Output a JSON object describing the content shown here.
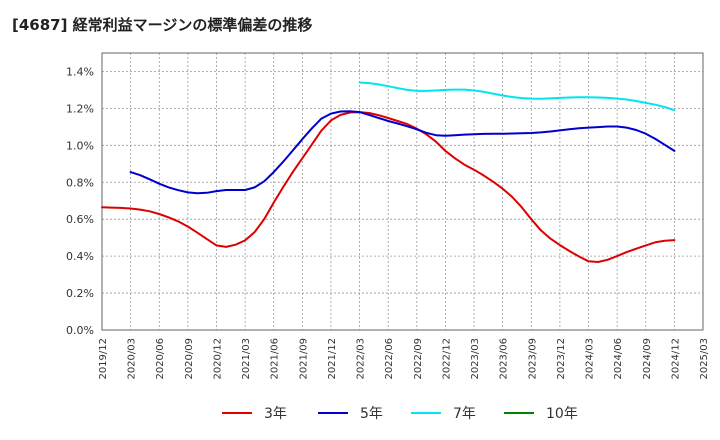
{
  "chart_data": {
    "type": "line",
    "title": "[4687]  経常利益マージンの標準偏差の推移",
    "xlabel": "",
    "ylabel": "",
    "ylim": [
      0,
      0.015
    ],
    "y_ticks": [
      "0.0%",
      "0.2%",
      "0.4%",
      "0.6%",
      "0.8%",
      "1.0%",
      "1.2%",
      "1.4%"
    ],
    "x_ticks": [
      "2019/12",
      "2020/03",
      "2020/06",
      "2020/09",
      "2020/12",
      "2021/03",
      "2021/06",
      "2021/09",
      "2021/12",
      "2022/03",
      "2022/06",
      "2022/09",
      "2022/12",
      "2023/03",
      "2023/06",
      "2023/09",
      "2023/12",
      "2024/03",
      "2024/06",
      "2024/09",
      "2024/12",
      "2025/03"
    ],
    "grid": true,
    "legend_position": "bottom",
    "series": [
      {
        "name": "3年",
        "color": "#dd0000",
        "points": [
          [
            "2019/12",
            0.00665
          ],
          [
            "2020/01",
            0.00663
          ],
          [
            "2020/02",
            0.00661
          ],
          [
            "2020/03",
            0.00658
          ],
          [
            "2020/04",
            0.00652
          ],
          [
            "2020/05",
            0.00643
          ],
          [
            "2020/06",
            0.00628
          ],
          [
            "2020/07",
            0.0061
          ],
          [
            "2020/08",
            0.00588
          ],
          [
            "2020/09",
            0.0056
          ],
          [
            "2020/10",
            0.00527
          ],
          [
            "2020/11",
            0.00492
          ],
          [
            "2020/12",
            0.00458
          ],
          [
            "2021/01",
            0.0045
          ],
          [
            "2021/02",
            0.00462
          ],
          [
            "2021/03",
            0.00485
          ],
          [
            "2021/04",
            0.0053
          ],
          [
            "2021/05",
            0.006
          ],
          [
            "2021/06",
            0.0069
          ],
          [
            "2021/07",
            0.00775
          ],
          [
            "2021/08",
            0.00855
          ],
          [
            "2021/09",
            0.0093
          ],
          [
            "2021/10",
            0.01005
          ],
          [
            "2021/11",
            0.0108
          ],
          [
            "2021/12",
            0.01135
          ],
          [
            "2022/01",
            0.01165
          ],
          [
            "2022/02",
            0.01178
          ],
          [
            "2022/03",
            0.0118
          ],
          [
            "2022/04",
            0.01175
          ],
          [
            "2022/05",
            0.01163
          ],
          [
            "2022/06",
            0.01148
          ],
          [
            "2022/07",
            0.01132
          ],
          [
            "2022/08",
            0.01115
          ],
          [
            "2022/09",
            0.0109
          ],
          [
            "2022/10",
            0.0106
          ],
          [
            "2022/11",
            0.0102
          ],
          [
            "2022/12",
            0.0097
          ],
          [
            "2023/01",
            0.0093
          ],
          [
            "2023/02",
            0.00895
          ],
          [
            "2023/03",
            0.00868
          ],
          [
            "2023/04",
            0.00837
          ],
          [
            "2023/05",
            0.00803
          ],
          [
            "2023/06",
            0.00765
          ],
          [
            "2023/07",
            0.0072
          ],
          [
            "2023/08",
            0.00665
          ],
          [
            "2023/09",
            0.006
          ],
          [
            "2023/10",
            0.0054
          ],
          [
            "2023/11",
            0.00495
          ],
          [
            "2023/12",
            0.0046
          ],
          [
            "2024/01",
            0.00428
          ],
          [
            "2024/02",
            0.00398
          ],
          [
            "2024/03",
            0.00372
          ],
          [
            "2024/04",
            0.00368
          ],
          [
            "2024/05",
            0.0038
          ],
          [
            "2024/06",
            0.004
          ],
          [
            "2024/07",
            0.00422
          ],
          [
            "2024/08",
            0.0044
          ],
          [
            "2024/09",
            0.00458
          ],
          [
            "2024/10",
            0.00475
          ],
          [
            "2024/11",
            0.00483
          ],
          [
            "2024/12",
            0.00487
          ]
        ]
      },
      {
        "name": "5年",
        "color": "#0000cc",
        "points": [
          [
            "2020/03",
            0.00855
          ],
          [
            "2020/04",
            0.00838
          ],
          [
            "2020/05",
            0.00816
          ],
          [
            "2020/06",
            0.00792
          ],
          [
            "2020/07",
            0.00772
          ],
          [
            "2020/08",
            0.00757
          ],
          [
            "2020/09",
            0.00745
          ],
          [
            "2020/10",
            0.0074
          ],
          [
            "2020/11",
            0.00743
          ],
          [
            "2020/12",
            0.00752
          ],
          [
            "2021/01",
            0.00758
          ],
          [
            "2021/02",
            0.00758
          ],
          [
            "2021/03",
            0.00758
          ],
          [
            "2021/04",
            0.00772
          ],
          [
            "2021/05",
            0.00805
          ],
          [
            "2021/06",
            0.00855
          ],
          [
            "2021/07",
            0.00912
          ],
          [
            "2021/08",
            0.00972
          ],
          [
            "2021/09",
            0.01033
          ],
          [
            "2021/10",
            0.01092
          ],
          [
            "2021/11",
            0.01145
          ],
          [
            "2021/12",
            0.01172
          ],
          [
            "2022/01",
            0.01183
          ],
          [
            "2022/02",
            0.01185
          ],
          [
            "2022/03",
            0.0118
          ],
          [
            "2022/04",
            0.01165
          ],
          [
            "2022/05",
            0.01148
          ],
          [
            "2022/06",
            0.01132
          ],
          [
            "2022/07",
            0.01118
          ],
          [
            "2022/08",
            0.01103
          ],
          [
            "2022/09",
            0.01087
          ],
          [
            "2022/10",
            0.01068
          ],
          [
            "2022/11",
            0.01055
          ],
          [
            "2022/12",
            0.01052
          ],
          [
            "2023/01",
            0.01055
          ],
          [
            "2023/02",
            0.01058
          ],
          [
            "2023/03",
            0.0106
          ],
          [
            "2023/04",
            0.01062
          ],
          [
            "2023/05",
            0.01063
          ],
          [
            "2023/06",
            0.01063
          ],
          [
            "2023/07",
            0.01064
          ],
          [
            "2023/08",
            0.01065
          ],
          [
            "2023/09",
            0.01067
          ],
          [
            "2023/10",
            0.0107
          ],
          [
            "2023/11",
            0.01075
          ],
          [
            "2023/12",
            0.01081
          ],
          [
            "2024/01",
            0.01087
          ],
          [
            "2024/02",
            0.01092
          ],
          [
            "2024/03",
            0.01096
          ],
          [
            "2024/04",
            0.01099
          ],
          [
            "2024/05",
            0.01102
          ],
          [
            "2024/06",
            0.01102
          ],
          [
            "2024/07",
            0.01096
          ],
          [
            "2024/08",
            0.01083
          ],
          [
            "2024/09",
            0.01063
          ],
          [
            "2024/10",
            0.01035
          ],
          [
            "2024/11",
            0.01003
          ],
          [
            "2024/12",
            0.0097
          ]
        ]
      },
      {
        "name": "7年",
        "color": "#00e5ee",
        "points": [
          [
            "2022/03",
            0.0134
          ],
          [
            "2022/04",
            0.01337
          ],
          [
            "2022/05",
            0.0133
          ],
          [
            "2022/06",
            0.0132
          ],
          [
            "2022/07",
            0.0131
          ],
          [
            "2022/08",
            0.013
          ],
          [
            "2022/09",
            0.01295
          ],
          [
            "2022/10",
            0.01295
          ],
          [
            "2022/11",
            0.01297
          ],
          [
            "2022/12",
            0.013
          ],
          [
            "2023/01",
            0.01302
          ],
          [
            "2023/02",
            0.01302
          ],
          [
            "2023/03",
            0.01297
          ],
          [
            "2023/04",
            0.0129
          ],
          [
            "2023/05",
            0.0128
          ],
          [
            "2023/06",
            0.0127
          ],
          [
            "2023/07",
            0.01262
          ],
          [
            "2023/08",
            0.01256
          ],
          [
            "2023/09",
            0.01253
          ],
          [
            "2023/10",
            0.01252
          ],
          [
            "2023/11",
            0.01254
          ],
          [
            "2023/12",
            0.01257
          ],
          [
            "2024/01",
            0.01259
          ],
          [
            "2024/02",
            0.0126
          ],
          [
            "2024/03",
            0.0126
          ],
          [
            "2024/04",
            0.01259
          ],
          [
            "2024/05",
            0.01257
          ],
          [
            "2024/06",
            0.01253
          ],
          [
            "2024/07",
            0.01248
          ],
          [
            "2024/08",
            0.0124
          ],
          [
            "2024/09",
            0.0123
          ],
          [
            "2024/10",
            0.0122
          ],
          [
            "2024/11",
            0.01207
          ],
          [
            "2024/12",
            0.0119
          ]
        ]
      },
      {
        "name": "10年",
        "color": "#008000",
        "points": []
      }
    ]
  }
}
